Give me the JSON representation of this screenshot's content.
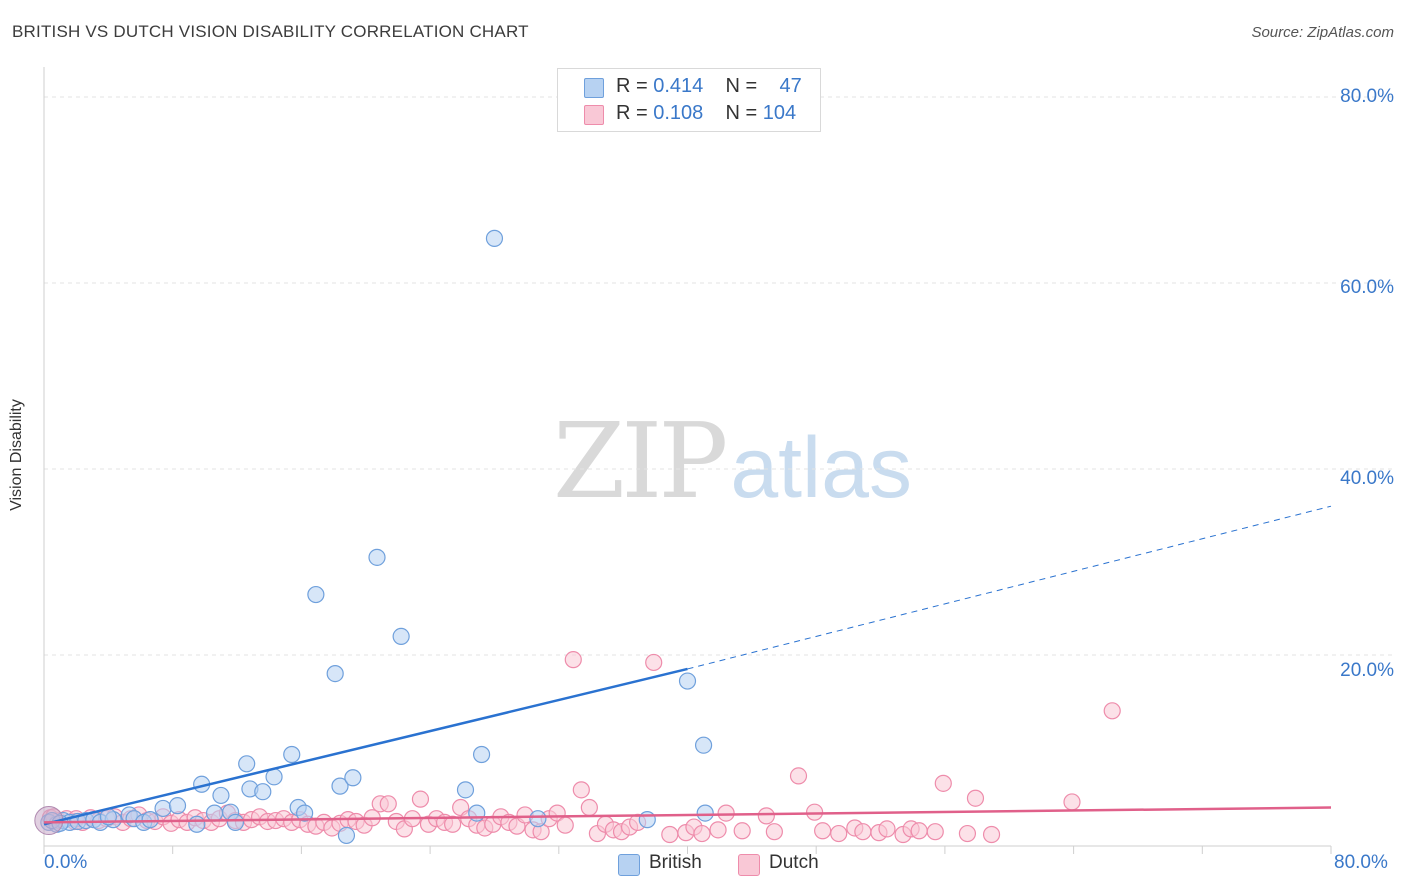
{
  "title": "BRITISH VS DUTCH VISION DISABILITY CORRELATION CHART",
  "source": "Source: ZipAtlas.com",
  "watermark": {
    "part1": "ZIP",
    "part2": "atlas"
  },
  "legend": {
    "rows": [
      {
        "r_label": "R = ",
        "r_value": "0.414",
        "n_label": "N = ",
        "n_value": "47",
        "color": "#a9c9f0",
        "border": "#6fa0dc"
      },
      {
        "r_label": "R = ",
        "r_value": "0.108",
        "n_label": "N = ",
        "n_value": "104",
        "color": "#f8c0d0",
        "border": "#ee8cab"
      }
    ]
  },
  "bottom_legend": [
    {
      "label": "British",
      "color": "#a9c9f0",
      "border": "#6fa0dc"
    },
    {
      "label": "Dutch",
      "color": "#f8c0d0",
      "border": "#ee8cab"
    }
  ],
  "chart_data": {
    "type": "scatter",
    "title": "BRITISH VS DUTCH VISION DISABILITY CORRELATION CHART",
    "xlabel": "",
    "ylabel": "Vision Disability",
    "xlim": [
      0,
      80
    ],
    "ylim": [
      -0.5,
      82
    ],
    "x_ticks": [
      "0.0%",
      "80.0%"
    ],
    "y_ticks": [
      {
        "value": 80,
        "label": "80.0%"
      },
      {
        "value": 60,
        "label": "60.0%"
      },
      {
        "value": 40,
        "label": "40.0%"
      },
      {
        "value": 20,
        "label": "20.0%"
      }
    ],
    "grid": true,
    "series": [
      {
        "name": "British",
        "color": "#6fa0dc",
        "fill": "#b7d2f2",
        "trend": {
          "x0": 0,
          "y0": 1.8,
          "x1": 40,
          "y1": 18.5,
          "dash_to_x": 80,
          "dash_to_y": 36,
          "color": "#2a72d0"
        },
        "points": [
          [
            0.3,
            2.0
          ],
          [
            0.8,
            1.8
          ],
          [
            1.2,
            2.2
          ],
          [
            1.6,
            2.0
          ],
          [
            2.1,
            2.1
          ],
          [
            2.6,
            2.2
          ],
          [
            3.1,
            2.3
          ],
          [
            3.5,
            2.0
          ],
          [
            4.3,
            2.3
          ],
          [
            5.3,
            2.8
          ],
          [
            5.6,
            2.4
          ],
          [
            6.2,
            2.0
          ],
          [
            6.6,
            2.3
          ],
          [
            7.4,
            3.5
          ],
          [
            8.3,
            3.8
          ],
          [
            9.5,
            1.8
          ],
          [
            9.8,
            6.1
          ],
          [
            10.6,
            3.0
          ],
          [
            11.0,
            4.9
          ],
          [
            11.6,
            3.1
          ],
          [
            11.9,
            2.0
          ],
          [
            12.6,
            8.3
          ],
          [
            12.8,
            5.6
          ],
          [
            13.6,
            5.3
          ],
          [
            14.3,
            6.9
          ],
          [
            15.4,
            9.3
          ],
          [
            15.8,
            3.6
          ],
          [
            16.2,
            3.0
          ],
          [
            16.9,
            26.5
          ],
          [
            18.1,
            18.0
          ],
          [
            18.4,
            5.9
          ],
          [
            18.8,
            0.6
          ],
          [
            19.2,
            6.8
          ],
          [
            20.7,
            30.5
          ],
          [
            22.2,
            22.0
          ],
          [
            26.2,
            5.5
          ],
          [
            26.9,
            3.0
          ],
          [
            27.2,
            9.3
          ],
          [
            28.0,
            64.8
          ],
          [
            30.7,
            2.4
          ],
          [
            37.5,
            2.3
          ],
          [
            40.0,
            17.2
          ],
          [
            41.0,
            10.3
          ],
          [
            41.1,
            3.0
          ],
          [
            0.5,
            2.2
          ],
          [
            1.0,
            1.9
          ],
          [
            4.0,
            2.6
          ]
        ]
      },
      {
        "name": "Dutch",
        "color": "#ee8cab",
        "fill": "#f9c8d6",
        "trend": {
          "x0": 0,
          "y0": 2.0,
          "x1": 80,
          "y1": 3.6,
          "color": "#e0608a"
        },
        "points": [
          [
            0.4,
            2.5
          ],
          [
            0.9,
            2.2
          ],
          [
            1.4,
            2.4
          ],
          [
            1.9,
            2.1
          ],
          [
            2.4,
            2.0
          ],
          [
            2.9,
            2.5
          ],
          [
            3.4,
            2.2
          ],
          [
            3.9,
            2.4
          ],
          [
            4.4,
            2.6
          ],
          [
            4.9,
            2.0
          ],
          [
            5.4,
            2.4
          ],
          [
            5.9,
            2.8
          ],
          [
            6.4,
            2.2
          ],
          [
            6.9,
            2.1
          ],
          [
            7.4,
            2.6
          ],
          [
            7.9,
            1.9
          ],
          [
            8.4,
            2.3
          ],
          [
            8.9,
            2.0
          ],
          [
            9.4,
            2.5
          ],
          [
            9.9,
            2.2
          ],
          [
            10.4,
            2.0
          ],
          [
            10.9,
            2.4
          ],
          [
            11.4,
            3.0
          ],
          [
            11.9,
            2.2
          ],
          [
            12.4,
            2.0
          ],
          [
            12.9,
            2.3
          ],
          [
            13.4,
            2.6
          ],
          [
            13.9,
            2.1
          ],
          [
            14.4,
            2.2
          ],
          [
            14.9,
            2.4
          ],
          [
            15.4,
            2.0
          ],
          [
            15.9,
            2.3
          ],
          [
            16.4,
            1.8
          ],
          [
            16.9,
            1.6
          ],
          [
            17.4,
            2.0
          ],
          [
            17.9,
            1.4
          ],
          [
            18.4,
            1.9
          ],
          [
            18.9,
            2.3
          ],
          [
            19.4,
            2.1
          ],
          [
            19.9,
            1.7
          ],
          [
            20.4,
            2.5
          ],
          [
            20.9,
            4.0
          ],
          [
            21.4,
            4.0
          ],
          [
            21.9,
            2.1
          ],
          [
            22.4,
            1.3
          ],
          [
            22.9,
            2.4
          ],
          [
            23.4,
            4.5
          ],
          [
            23.9,
            1.8
          ],
          [
            24.4,
            2.4
          ],
          [
            24.9,
            2.0
          ],
          [
            25.4,
            1.8
          ],
          [
            25.9,
            3.6
          ],
          [
            26.4,
            2.4
          ],
          [
            26.9,
            1.7
          ],
          [
            27.4,
            1.4
          ],
          [
            27.9,
            1.8
          ],
          [
            28.4,
            2.6
          ],
          [
            28.9,
            2.0
          ],
          [
            29.4,
            1.6
          ],
          [
            29.9,
            2.8
          ],
          [
            30.4,
            1.2
          ],
          [
            30.9,
            1.0
          ],
          [
            31.4,
            2.4
          ],
          [
            31.9,
            3.0
          ],
          [
            32.4,
            1.7
          ],
          [
            32.9,
            19.5
          ],
          [
            33.4,
            5.5
          ],
          [
            33.9,
            3.6
          ],
          [
            34.4,
            0.8
          ],
          [
            34.9,
            1.8
          ],
          [
            35.4,
            1.2
          ],
          [
            35.9,
            1.0
          ],
          [
            36.4,
            1.5
          ],
          [
            36.9,
            2.0
          ],
          [
            37.9,
            19.2
          ],
          [
            38.9,
            0.7
          ],
          [
            39.9,
            0.9
          ],
          [
            40.4,
            1.5
          ],
          [
            40.9,
            0.8
          ],
          [
            41.9,
            1.2
          ],
          [
            42.4,
            3.0
          ],
          [
            43.4,
            1.1
          ],
          [
            44.9,
            2.7
          ],
          [
            45.4,
            1.0
          ],
          [
            46.9,
            7.0
          ],
          [
            47.9,
            3.1
          ],
          [
            48.4,
            1.1
          ],
          [
            49.4,
            0.8
          ],
          [
            50.4,
            1.4
          ],
          [
            50.9,
            1.0
          ],
          [
            51.9,
            0.9
          ],
          [
            52.4,
            1.3
          ],
          [
            53.4,
            0.7
          ],
          [
            53.9,
            1.3
          ],
          [
            54.4,
            1.1
          ],
          [
            55.4,
            1.0
          ],
          [
            55.9,
            6.2
          ],
          [
            57.4,
            0.8
          ],
          [
            57.9,
            4.6
          ],
          [
            58.9,
            0.7
          ],
          [
            63.9,
            4.2
          ],
          [
            66.4,
            14.0
          ],
          [
            0.6,
            2.6
          ],
          [
            2.0,
            2.4
          ]
        ]
      }
    ]
  }
}
